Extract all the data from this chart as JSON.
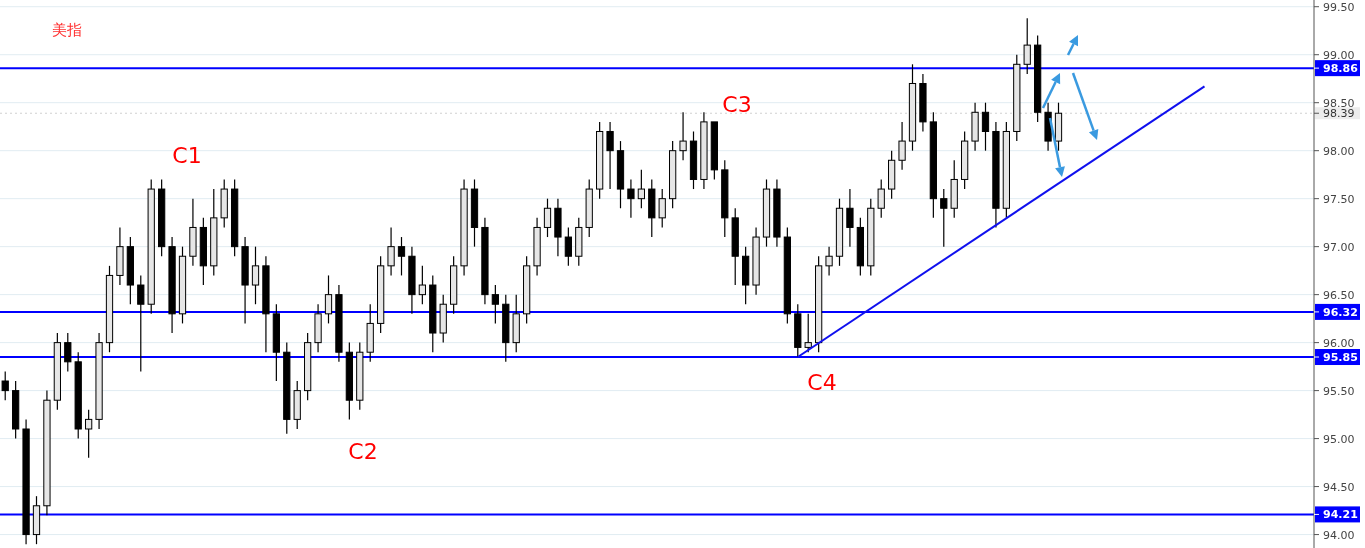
{
  "chart_data": {
    "type": "candlestick",
    "title": "美指",
    "categories": [
      null,
      null,
      null,
      null,
      null,
      null,
      null,
      null,
      null,
      null,
      null,
      null,
      null,
      null,
      null,
      null,
      null,
      null,
      null,
      null,
      null,
      null,
      null,
      null,
      null,
      null,
      null,
      null,
      null,
      null,
      null,
      null,
      null,
      null,
      null,
      null,
      null,
      null,
      null,
      null,
      null,
      null,
      null,
      null,
      null,
      null,
      null,
      null,
      null,
      null,
      null,
      null,
      null,
      null,
      null,
      null,
      null,
      null,
      null,
      null,
      null,
      null,
      null,
      null,
      null,
      null,
      null,
      null,
      null,
      null,
      null,
      null,
      null,
      null,
      null,
      null,
      null,
      null,
      null,
      null,
      null,
      null,
      null,
      null,
      null,
      null,
      null,
      null,
      null,
      null,
      null,
      null,
      null,
      null,
      null,
      null,
      null,
      null,
      null,
      null,
      null,
      null,
      null,
      null,
      null,
      null,
      null,
      null,
      null,
      null,
      null,
      null,
      null,
      null,
      null,
      null,
      null,
      null,
      null,
      null,
      null,
      null,
      null,
      null,
      null,
      null
    ],
    "ohlc": [
      [
        95.6,
        95.7,
        95.4,
        95.5
      ],
      [
        95.5,
        95.6,
        95.0,
        95.1
      ],
      [
        95.1,
        95.2,
        93.9,
        94.0
      ],
      [
        94.0,
        94.4,
        93.9,
        94.3
      ],
      [
        94.3,
        95.5,
        94.2,
        95.4
      ],
      [
        95.4,
        96.1,
        95.3,
        96.0
      ],
      [
        96.0,
        96.1,
        95.7,
        95.8
      ],
      [
        95.8,
        95.9,
        95.0,
        95.1
      ],
      [
        95.1,
        95.3,
        94.8,
        95.2
      ],
      [
        95.2,
        96.1,
        95.1,
        96.0
      ],
      [
        96.0,
        96.8,
        95.9,
        96.7
      ],
      [
        96.7,
        97.2,
        96.6,
        97.0
      ],
      [
        97.0,
        97.1,
        96.4,
        96.6
      ],
      [
        96.6,
        96.7,
        95.7,
        96.4
      ],
      [
        96.4,
        97.7,
        96.3,
        97.6
      ],
      [
        97.6,
        97.7,
        96.9,
        97.0
      ],
      [
        97.0,
        97.1,
        96.1,
        96.3
      ],
      [
        96.3,
        97.0,
        96.2,
        96.9
      ],
      [
        96.9,
        97.5,
        96.8,
        97.2
      ],
      [
        97.2,
        97.3,
        96.6,
        96.8
      ],
      [
        96.8,
        97.6,
        96.7,
        97.3
      ],
      [
        97.3,
        97.7,
        97.2,
        97.6
      ],
      [
        97.6,
        97.7,
        96.9,
        97.0
      ],
      [
        97.0,
        97.1,
        96.2,
        96.6
      ],
      [
        96.6,
        97.0,
        96.4,
        96.8
      ],
      [
        96.8,
        96.9,
        95.9,
        96.3
      ],
      [
        96.3,
        96.4,
        95.6,
        95.9
      ],
      [
        95.9,
        96.0,
        95.05,
        95.2
      ],
      [
        95.2,
        95.6,
        95.1,
        95.5
      ],
      [
        95.5,
        96.1,
        95.4,
        96.0
      ],
      [
        96.0,
        96.4,
        95.9,
        96.3
      ],
      [
        96.3,
        96.7,
        96.2,
        96.5
      ],
      [
        96.5,
        96.6,
        95.8,
        95.9
      ],
      [
        95.9,
        96.0,
        95.2,
        95.4
      ],
      [
        95.4,
        96.0,
        95.3,
        95.9
      ],
      [
        95.9,
        96.4,
        95.8,
        96.2
      ],
      [
        96.2,
        96.9,
        96.1,
        96.8
      ],
      [
        96.8,
        97.2,
        96.7,
        97.0
      ],
      [
        97.0,
        97.1,
        96.7,
        96.9
      ],
      [
        96.9,
        97.0,
        96.3,
        96.5
      ],
      [
        96.5,
        96.8,
        96.4,
        96.6
      ],
      [
        96.6,
        96.7,
        95.9,
        96.1
      ],
      [
        96.1,
        96.5,
        96.0,
        96.4
      ],
      [
        96.4,
        96.9,
        96.3,
        96.8
      ],
      [
        96.8,
        97.7,
        96.7,
        97.6
      ],
      [
        97.6,
        97.7,
        97.0,
        97.2
      ],
      [
        97.2,
        97.3,
        96.4,
        96.5
      ],
      [
        96.5,
        96.6,
        96.2,
        96.4
      ],
      [
        96.4,
        96.5,
        95.8,
        96.0
      ],
      [
        96.0,
        96.5,
        95.9,
        96.3
      ],
      [
        96.3,
        96.9,
        96.2,
        96.8
      ],
      [
        96.8,
        97.3,
        96.7,
        97.2
      ],
      [
        97.2,
        97.5,
        97.1,
        97.4
      ],
      [
        97.4,
        97.5,
        96.9,
        97.1
      ],
      [
        97.1,
        97.2,
        96.8,
        96.9
      ],
      [
        96.9,
        97.3,
        96.8,
        97.2
      ],
      [
        97.2,
        97.7,
        97.1,
        97.6
      ],
      [
        97.6,
        98.3,
        97.5,
        98.2
      ],
      [
        98.2,
        98.3,
        97.6,
        98.0
      ],
      [
        98.0,
        98.1,
        97.4,
        97.6
      ],
      [
        97.6,
        97.7,
        97.3,
        97.5
      ],
      [
        97.5,
        97.8,
        97.4,
        97.6
      ],
      [
        97.6,
        97.7,
        97.1,
        97.3
      ],
      [
        97.3,
        97.6,
        97.2,
        97.5
      ],
      [
        97.5,
        98.1,
        97.4,
        98.0
      ],
      [
        98.0,
        98.4,
        97.9,
        98.1
      ],
      [
        98.1,
        98.2,
        97.6,
        97.7
      ],
      [
        97.7,
        98.4,
        97.6,
        98.3
      ],
      [
        98.3,
        98.3,
        97.7,
        97.8
      ],
      [
        97.8,
        97.9,
        97.1,
        97.3
      ],
      [
        97.3,
        97.4,
        96.6,
        96.9
      ],
      [
        96.9,
        97.0,
        96.4,
        96.6
      ],
      [
        96.6,
        97.2,
        96.5,
        97.1
      ],
      [
        97.1,
        97.7,
        97.0,
        97.6
      ],
      [
        97.6,
        97.7,
        97.0,
        97.1
      ],
      [
        97.1,
        97.2,
        96.2,
        96.3
      ],
      [
        96.3,
        96.4,
        95.85,
        95.95
      ],
      [
        95.95,
        96.3,
        95.9,
        96.0
      ],
      [
        96.0,
        96.9,
        95.9,
        96.8
      ],
      [
        96.8,
        97.0,
        96.7,
        96.9
      ],
      [
        96.9,
        97.5,
        96.8,
        97.4
      ],
      [
        97.4,
        97.6,
        97.0,
        97.2
      ],
      [
        97.2,
        97.3,
        96.7,
        96.8
      ],
      [
        96.8,
        97.5,
        96.7,
        97.4
      ],
      [
        97.4,
        97.7,
        97.3,
        97.6
      ],
      [
        97.6,
        98.0,
        97.5,
        97.9
      ],
      [
        97.9,
        98.3,
        97.8,
        98.1
      ],
      [
        98.1,
        98.9,
        98.0,
        98.7
      ],
      [
        98.7,
        98.8,
        98.2,
        98.3
      ],
      [
        98.3,
        98.4,
        97.3,
        97.5
      ],
      [
        97.5,
        97.6,
        97.0,
        97.4
      ],
      [
        97.4,
        97.9,
        97.3,
        97.7
      ],
      [
        97.7,
        98.2,
        97.6,
        98.1
      ],
      [
        98.1,
        98.5,
        98.0,
        98.4
      ],
      [
        98.4,
        98.5,
        98.0,
        98.2
      ],
      [
        98.2,
        98.3,
        97.2,
        97.4
      ],
      [
        97.4,
        98.3,
        97.3,
        98.2
      ],
      [
        98.2,
        99.0,
        98.1,
        98.9
      ],
      [
        98.9,
        99.38,
        98.8,
        99.1
      ],
      [
        99.1,
        99.2,
        98.3,
        98.4
      ],
      [
        98.4,
        98.5,
        98.0,
        98.1
      ],
      [
        98.1,
        98.5,
        98.0,
        98.39
      ],
      null,
      null,
      null,
      null,
      null,
      null,
      null,
      null,
      null,
      null,
      null,
      null,
      null,
      null,
      null,
      null,
      null,
      null,
      null,
      null,
      null,
      null,
      null,
      null
    ],
    "ylim": [
      93.86,
      99.57
    ],
    "yticks": [
      {
        "value": 94,
        "label": "94.00"
      },
      {
        "value": 94.5,
        "label": "94.50"
      },
      {
        "value": 95,
        "label": "95.00"
      },
      {
        "value": 95.5,
        "label": "95.50"
      },
      {
        "value": 96,
        "label": "96.00"
      },
      {
        "value": 96.5,
        "label": "96.50"
      },
      {
        "value": 97,
        "label": "97.00"
      },
      {
        "value": 97.5,
        "label": "97.50"
      },
      {
        "value": 98,
        "label": "98.00"
      },
      {
        "value": 98.5,
        "label": "98.50"
      },
      {
        "value": 99,
        "label": "99.00"
      },
      {
        "value": 99.5,
        "label": "99.50"
      }
    ],
    "tick_labels": "y",
    "grid": "y",
    "ref_lines": [
      {
        "axis": "y",
        "value": 98.86,
        "label": "98.86",
        "color": "#0000ff"
      },
      {
        "axis": "y",
        "value": 96.32,
        "label": "96.32",
        "color": "#0000ff"
      },
      {
        "axis": "y",
        "value": 95.85,
        "label": "95.85",
        "color": "#0000ff"
      },
      {
        "axis": "y",
        "value": 94.21,
        "label": "94.21",
        "color": "#0000ff"
      },
      {
        "axis": "y",
        "value": 98.39,
        "label": "98.39",
        "color": "#d0d0d0",
        "line_style": "dotted"
      }
    ],
    "series": [
      {
        "type": "line",
        "color": "#1010ee",
        "values": [
          null,
          null,
          null,
          null,
          null,
          null,
          null,
          null,
          null,
          null,
          null,
          null,
          null,
          null,
          null,
          null,
          null,
          null,
          null,
          null,
          null,
          null,
          null,
          null,
          null,
          null,
          null,
          null,
          null,
          null,
          null,
          null,
          null,
          null,
          null,
          null,
          null,
          null,
          null,
          null,
          null,
          null,
          null,
          null,
          null,
          null,
          null,
          null,
          null,
          null,
          null,
          null,
          null,
          null,
          null,
          null,
          null,
          null,
          null,
          null,
          null,
          null,
          null,
          null,
          null,
          null,
          null,
          null,
          null,
          null,
          null,
          null,
          null,
          null,
          null,
          null,
          95.85,
          null,
          null,
          null,
          null,
          null,
          null,
          null,
          null,
          null,
          null,
          null,
          null,
          null,
          null,
          null,
          null,
          null,
          null,
          null,
          null,
          null,
          null,
          null,
          null,
          null,
          null,
          null,
          null,
          null,
          null,
          null,
          null,
          null,
          null,
          null,
          null,
          null,
          null,
          98.67,
          null,
          null,
          null,
          null,
          null,
          null,
          null,
          null,
          null,
          null
        ]
      }
    ],
    "annotations": [
      "C1",
      "C2",
      "C3",
      "C4"
    ]
  }
}
